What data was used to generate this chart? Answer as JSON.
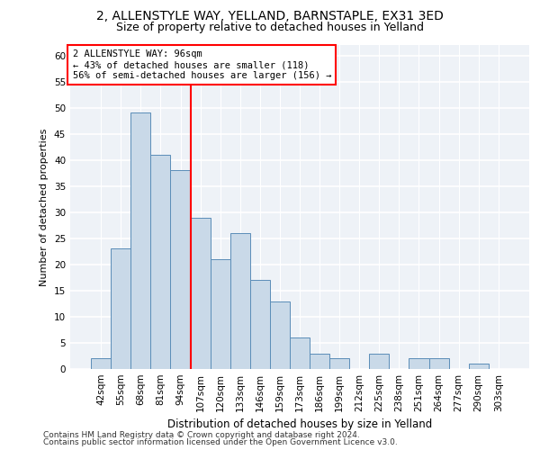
{
  "title1": "2, ALLENSTYLE WAY, YELLAND, BARNSTAPLE, EX31 3ED",
  "title2": "Size of property relative to detached houses in Yelland",
  "xlabel": "Distribution of detached houses by size in Yelland",
  "ylabel": "Number of detached properties",
  "categories": [
    "42sqm",
    "55sqm",
    "68sqm",
    "81sqm",
    "94sqm",
    "107sqm",
    "120sqm",
    "133sqm",
    "146sqm",
    "159sqm",
    "173sqm",
    "186sqm",
    "199sqm",
    "212sqm",
    "225sqm",
    "238sqm",
    "251sqm",
    "264sqm",
    "277sqm",
    "290sqm",
    "303sqm"
  ],
  "values": [
    2,
    23,
    49,
    41,
    38,
    29,
    21,
    26,
    17,
    13,
    6,
    3,
    2,
    0,
    3,
    0,
    2,
    2,
    0,
    1,
    0
  ],
  "bar_color": "#c9d9e8",
  "bar_edge_color": "#5b8db8",
  "vline_x_index": 4,
  "marker_label": "2 ALLENSTYLE WAY: 96sqm",
  "annotation_line1": "← 43% of detached houses are smaller (118)",
  "annotation_line2": "56% of semi-detached houses are larger (156) →",
  "annotation_box_color": "white",
  "annotation_box_edge_color": "red",
  "vline_color": "red",
  "ylim": [
    0,
    62
  ],
  "yticks": [
    0,
    5,
    10,
    15,
    20,
    25,
    30,
    35,
    40,
    45,
    50,
    55,
    60
  ],
  "background_color": "#eef2f7",
  "grid_color": "#ffffff",
  "title1_fontsize": 10,
  "title2_fontsize": 9,
  "xlabel_fontsize": 8.5,
  "ylabel_fontsize": 8,
  "tick_fontsize": 7.5,
  "annotation_fontsize": 7.5,
  "footer_fontsize": 6.5,
  "footer1": "Contains HM Land Registry data © Crown copyright and database right 2024.",
  "footer2": "Contains public sector information licensed under the Open Government Licence v3.0."
}
